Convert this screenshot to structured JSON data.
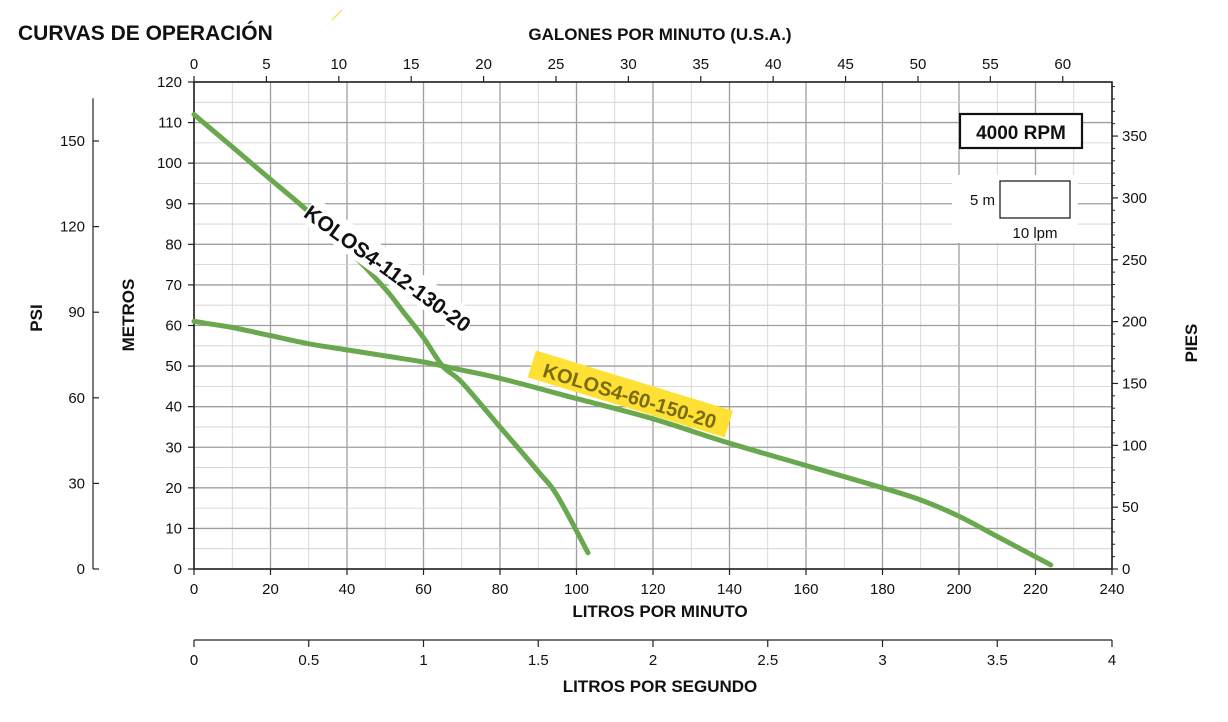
{
  "chart_data": {
    "type": "line",
    "title": "CURVAS DE OPERACIÓN",
    "xlabel": "LITROS POR MINUTO",
    "ylabel": "METROS",
    "xlim": [
      0,
      240
    ],
    "ylim": [
      0,
      120
    ],
    "x_ticks": [
      "0",
      "20",
      "40",
      "60",
      "80",
      "100",
      "120",
      "140",
      "160",
      "180",
      "200",
      "220",
      "240"
    ],
    "y_ticks": [
      "0",
      "10",
      "20",
      "30",
      "40",
      "50",
      "60",
      "70",
      "80",
      "90",
      "100",
      "110",
      "120"
    ],
    "top_axis": {
      "label": "GALONES POR MINUTO (U.S.A.)",
      "ticks": [
        "0",
        "5",
        "10",
        "15",
        "20",
        "25",
        "30",
        "35",
        "40",
        "45",
        "50",
        "55",
        "60"
      ]
    },
    "left_axis": {
      "label": "PSI",
      "ticks": [
        "0",
        "30",
        "60",
        "90",
        "120",
        "150"
      ]
    },
    "right_axis": {
      "label": "PIES",
      "ticks": [
        "0",
        "50",
        "100",
        "150",
        "200",
        "250",
        "300",
        "350"
      ]
    },
    "bottom_axis": {
      "label": "LITROS POR SEGUNDO",
      "ticks": [
        "0",
        "0.5",
        "1",
        "1.5",
        "2",
        "2.5",
        "3",
        "3.5",
        "4"
      ]
    },
    "rpm_label": "4000 RPM",
    "scale_box": {
      "vertical": "5 m",
      "horizontal": "10 lpm"
    },
    "grid": true,
    "series": [
      {
        "name": "KOLOS4-112-130-20",
        "color": "#6aa84f",
        "label_bg": "",
        "x": [
          0,
          10,
          20,
          30,
          40,
          50,
          55,
          60,
          65,
          70,
          80,
          90,
          95,
          103
        ],
        "y": [
          112,
          104,
          96,
          88,
          79,
          69,
          63,
          57,
          50,
          46,
          35,
          24,
          18,
          4
        ]
      },
      {
        "name": "KOLOS4-60-150-20",
        "color": "#6aa84f",
        "label_bg": "#ffe135",
        "x": [
          0,
          10,
          20,
          30,
          40,
          50,
          60,
          70,
          80,
          100,
          120,
          140,
          160,
          180,
          190,
          200,
          210,
          224
        ],
        "y": [
          61,
          59.5,
          57.5,
          55.5,
          54,
          52.5,
          51,
          49,
          47,
          42,
          37,
          31,
          25.5,
          20,
          17,
          13,
          8,
          1
        ]
      }
    ]
  }
}
